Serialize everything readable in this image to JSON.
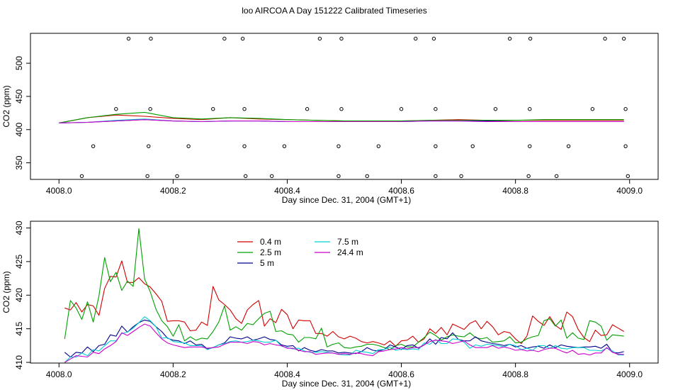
{
  "title": "loo AIRCOA A  Day 151222  Calibrated Timeseries",
  "chart_data": [
    {
      "type": "line",
      "title": "",
      "xlabel": "Day since Dec. 31, 2004 (GMT+1)",
      "ylabel": "CO2 (ppm)",
      "xlim": [
        4007.95,
        4009.05
      ],
      "ylim": [
        325,
        545
      ],
      "xticks": [
        4008.0,
        4008.2,
        4008.4,
        4008.6,
        4008.8,
        4009.0
      ],
      "xtick_labels": [
        "4008.0",
        "4008.2",
        "4008.4",
        "4008.6",
        "4008.8",
        "4009.0"
      ],
      "yticks": [
        350,
        400,
        450,
        500
      ],
      "ytick_labels": [
        "350",
        "400",
        "450",
        "500"
      ],
      "grid": false,
      "x": [
        4008.0,
        4008.05,
        4008.1,
        4008.15,
        4008.2,
        4008.25,
        4008.3,
        4008.35,
        4008.4,
        4008.45,
        4008.5,
        4008.55,
        4008.6,
        4008.65,
        4008.7,
        4008.75,
        4008.8,
        4008.85,
        4008.9,
        4008.95,
        4008.99
      ],
      "series": [
        {
          "color": "#d00000",
          "values": [
            410,
            418,
            422,
            420,
            417,
            415,
            418,
            416,
            415,
            414,
            413,
            413,
            413,
            414,
            415,
            414,
            414,
            414,
            414,
            414,
            414
          ]
        },
        {
          "color": "#00a000",
          "values": [
            410,
            418,
            423,
            426,
            418,
            416,
            418,
            417,
            415,
            414,
            413,
            413,
            413,
            414,
            414,
            414,
            414,
            415,
            415,
            415,
            415
          ]
        },
        {
          "color": "#00008b",
          "values": [
            410,
            411,
            413,
            415,
            413,
            412,
            413,
            413,
            412,
            412,
            412,
            412,
            412,
            413,
            413,
            413,
            412,
            412,
            412,
            412,
            412
          ]
        },
        {
          "color": "#00d0d0",
          "values": [
            410,
            411,
            414,
            416,
            413,
            412,
            413,
            413,
            412,
            412,
            412,
            412,
            412,
            413,
            413,
            412,
            412,
            412,
            412,
            412,
            412
          ]
        },
        {
          "color": "#cc00cc",
          "values": [
            410,
            411,
            413,
            415,
            413,
            412,
            413,
            413,
            412,
            412,
            412,
            412,
            412,
            413,
            413,
            412,
            412,
            412,
            412,
            412,
            412
          ]
        }
      ],
      "flag_markers": [
        {
          "y": 537,
          "x": [
            4008.122,
            4008.161,
            4008.29,
            4008.322,
            4008.457,
            4008.495,
            4008.625,
            4008.657,
            4008.79,
            4008.826,
            4008.957,
            4008.99
          ]
        },
        {
          "y": 431,
          "x": [
            4008.1,
            4008.16,
            4008.27,
            4008.325,
            4008.435,
            4008.495,
            4008.6,
            4008.66,
            4008.765,
            4008.825,
            4008.935,
            4008.993
          ]
        },
        {
          "y": 375,
          "x": [
            4008.06,
            4008.157,
            4008.227,
            4008.325,
            4008.395,
            4008.49,
            4008.56,
            4008.66,
            4008.725,
            4008.825,
            4008.893,
            4008.993
          ]
        },
        {
          "y": 330,
          "x": [
            4008.04,
            4008.155,
            4008.207,
            4008.327,
            4008.373,
            4008.49,
            4008.54,
            4008.66,
            4008.705,
            4008.823,
            4008.872,
            4008.997
          ]
        }
      ]
    },
    {
      "type": "line",
      "title": "",
      "xlabel": "Day since Dec. 31, 2004 (GMT+1)",
      "ylabel": "CO2 (ppm)",
      "xlim": [
        4007.95,
        4009.05
      ],
      "ylim": [
        409.9,
        431
      ],
      "xticks": [
        4008.0,
        4008.2,
        4008.4,
        4008.6,
        4008.8,
        4009.0
      ],
      "xtick_labels": [
        "4008.0",
        "4008.2",
        "4008.4",
        "4008.6",
        "4008.8",
        "4009.0"
      ],
      "yticks": [
        410,
        415,
        420,
        425,
        430
      ],
      "ytick_labels": [
        "410",
        "415",
        "420",
        "425",
        "430"
      ],
      "grid": false,
      "legend_placement": "top-left",
      "x": [
        4008.01,
        4008.02,
        4008.03,
        4008.04,
        4008.05,
        4008.06,
        4008.07,
        4008.08,
        4008.09,
        4008.1,
        4008.11,
        4008.12,
        4008.13,
        4008.14,
        4008.15,
        4008.16,
        4008.17,
        4008.18,
        4008.19,
        4008.2,
        4008.21,
        4008.22,
        4008.23,
        4008.24,
        4008.25,
        4008.26,
        4008.27,
        4008.28,
        4008.29,
        4008.3,
        4008.31,
        4008.32,
        4008.33,
        4008.34,
        4008.35,
        4008.36,
        4008.37,
        4008.38,
        4008.39,
        4008.4,
        4008.41,
        4008.42,
        4008.43,
        4008.44,
        4008.45,
        4008.46,
        4008.47,
        4008.48,
        4008.49,
        4008.5,
        4008.51,
        4008.52,
        4008.53,
        4008.54,
        4008.55,
        4008.56,
        4008.57,
        4008.58,
        4008.59,
        4008.6,
        4008.61,
        4008.62,
        4008.63,
        4008.64,
        4008.65,
        4008.66,
        4008.67,
        4008.68,
        4008.69,
        4008.7,
        4008.71,
        4008.72,
        4008.73,
        4008.74,
        4008.75,
        4008.76,
        4008.77,
        4008.78,
        4008.79,
        4008.8,
        4008.81,
        4008.82,
        4008.83,
        4008.84,
        4008.85,
        4008.86,
        4008.87,
        4008.88,
        4008.89,
        4008.9,
        4008.91,
        4008.92,
        4008.93,
        4008.94,
        4008.95,
        4008.96,
        4008.97,
        4008.98,
        4008.99
      ],
      "series": [
        {
          "name": "0.4 m",
          "color": "#d00000",
          "values": [
            418.1,
            417.8,
            418.9,
            417.5,
            418.6,
            418.4,
            417.0,
            421.0,
            422.8,
            422.7,
            425.1,
            421.9,
            421.9,
            422.6,
            421.7,
            421.2,
            420.2,
            419.1,
            416.1,
            416.2,
            416.2,
            416.0,
            414.7,
            414.8,
            416.0,
            415.5,
            421.3,
            419.3,
            418.6,
            417.8,
            416.5,
            415.8,
            417.8,
            418.6,
            419.2,
            415.4,
            416.5,
            415.9,
            417.9,
            417.1,
            415.0,
            416.3,
            416.2,
            416.2,
            414.3,
            414.3,
            413.9,
            414.6,
            413.8,
            413.5,
            413.9,
            413.6,
            413.1,
            412.9,
            413.1,
            412.9,
            412.6,
            413.2,
            412.4,
            413.2,
            413.3,
            413.9,
            413.0,
            413.5,
            415.0,
            414.3,
            415.2,
            414.1,
            415.7,
            415.3,
            414.9,
            415.8,
            416.2,
            415.0,
            416.1,
            415.3,
            414.1,
            414.6,
            414.4,
            413.5,
            412.8,
            413.9,
            416.9,
            416.1,
            415.5,
            416.8,
            415.5,
            414.9,
            417.5,
            416.8,
            414.9,
            413.7,
            413.1,
            414.8,
            414.0,
            414.1,
            415.6,
            415.1,
            414.6
          ]
        },
        {
          "name": "2.5 m",
          "color": "#00a000",
          "values": [
            413.5,
            419.2,
            418.1,
            416.4,
            419.0,
            416.0,
            419.9,
            425.6,
            422.0,
            423.4,
            420.7,
            422.1,
            421.3,
            429.9,
            422.4,
            420.5,
            417.9,
            416.2,
            415.3,
            413.9,
            415.6,
            413.2,
            413.8,
            413.3,
            413.6,
            413.5,
            414.6,
            416.0,
            418.4,
            414.8,
            415.3,
            414.8,
            415.8,
            415.6,
            416.5,
            417.3,
            417.6,
            414.6,
            414.7,
            414.2,
            414.1,
            413.0,
            413.7,
            413.7,
            413.5,
            415.1,
            412.3,
            412.7,
            412.9,
            412.2,
            412.1,
            412.3,
            412.4,
            412.7,
            412.7,
            412.5,
            412.2,
            411.9,
            412.5,
            412.7,
            412.3,
            412.3,
            413.0,
            413.7,
            414.5,
            414.0,
            413.3,
            413.8,
            414.1,
            413.9,
            413.8,
            414.4,
            413.7,
            413.5,
            413.7,
            413.0,
            413.1,
            413.2,
            413.8,
            412.9,
            413.0,
            413.5,
            413.8,
            414.0,
            416.2,
            416.5,
            415.4,
            416.3,
            413.6,
            414.4,
            413.6,
            413.4,
            416.2,
            416.0,
            415.4,
            413.3,
            414.1,
            414.0,
            413.9
          ]
        },
        {
          "name": "5 m",
          "color": "#00008b",
          "values": [
            411.5,
            410.8,
            411.5,
            411.4,
            412.3,
            411.6,
            412.5,
            412.7,
            414.1,
            413.9,
            415.4,
            414.5,
            415.3,
            415.9,
            416.3,
            416.1,
            415.3,
            414.6,
            413.6,
            413.3,
            413.2,
            412.8,
            413.2,
            412.6,
            412.7,
            412.0,
            412.2,
            412.6,
            412.9,
            413.8,
            413.6,
            413.5,
            413.8,
            413.3,
            413.5,
            413.8,
            413.4,
            413.3,
            412.6,
            412.4,
            412.5,
            411.7,
            412.2,
            411.8,
            411.6,
            411.9,
            411.7,
            411.7,
            411.4,
            411.5,
            411.4,
            411.3,
            411.6,
            412.2,
            411.8,
            411.7,
            411.9,
            412.6,
            412.3,
            411.9,
            412.5,
            412.6,
            412.1,
            412.6,
            413.5,
            412.7,
            413.7,
            413.5,
            414.4,
            413.4,
            413.2,
            413.2,
            413.8,
            413.2,
            413.0,
            412.8,
            412.7,
            412.5,
            412.7,
            412.3,
            412.5,
            412.1,
            412.3,
            412.4,
            412.1,
            412.6,
            412.2,
            412.6,
            412.4,
            412.3,
            412.2,
            412.3,
            412.3,
            412.4,
            412.1,
            412.7,
            411.5,
            411.4,
            411.6
          ]
        },
        {
          "name": "7.5 m",
          "color": "#00d0d0",
          "values": [
            410.0,
            410.8,
            410.8,
            411.4,
            411.0,
            411.9,
            411.7,
            412.5,
            413.2,
            413.2,
            414.3,
            414.5,
            415.1,
            415.9,
            416.8,
            416.2,
            415.3,
            413.6,
            413.7,
            413.1,
            413.0,
            412.9,
            412.5,
            412.5,
            412.5,
            411.9,
            412.2,
            412.6,
            412.8,
            413.1,
            413.2,
            413.0,
            413.1,
            413.3,
            413.2,
            413.0,
            413.0,
            413.3,
            412.4,
            412.2,
            412.0,
            412.1,
            411.7,
            411.5,
            411.5,
            411.6,
            411.5,
            411.4,
            411.2,
            411.1,
            411.1,
            411.8,
            411.6,
            411.5,
            411.3,
            411.9,
            411.9,
            412.3,
            411.8,
            412.0,
            411.9,
            412.0,
            411.9,
            412.9,
            412.7,
            413.4,
            412.8,
            412.8,
            413.5,
            413.4,
            413.0,
            412.1,
            412.6,
            412.4,
            412.7,
            412.6,
            412.5,
            412.3,
            412.7,
            412.5,
            411.9,
            412.1,
            411.8,
            412.5,
            412.5,
            412.1,
            412.5,
            412.1,
            412.0,
            412.2,
            412.2,
            412.2,
            411.8,
            411.8,
            411.7,
            412.1,
            411.7,
            411.1,
            411.1
          ]
        },
        {
          "name": "24.4 m",
          "color": "#cc00cc",
          "values": [
            410.0,
            410.5,
            411.0,
            410.9,
            410.8,
            411.5,
            411.3,
            412.0,
            412.5,
            413.1,
            414.4,
            414.0,
            414.6,
            415.2,
            415.7,
            415.4,
            414.4,
            413.5,
            412.9,
            412.6,
            412.4,
            412.2,
            412.3,
            412.3,
            412.3,
            412.1,
            412.2,
            412.3,
            412.7,
            413.0,
            413.0,
            413.0,
            412.8,
            413.1,
            413.0,
            412.6,
            412.8,
            412.6,
            412.5,
            412.1,
            412.1,
            411.8,
            411.6,
            411.6,
            411.2,
            411.3,
            411.4,
            411.4,
            411.2,
            411.3,
            411.2,
            411.4,
            411.3,
            411.1,
            411.0,
            411.6,
            411.7,
            411.9,
            412.0,
            412.2,
            412.0,
            412.2,
            412.2,
            412.6,
            413.1,
            413.3,
            413.2,
            413.1,
            412.8,
            413.0,
            413.2,
            412.6,
            412.2,
            412.2,
            412.2,
            412.5,
            412.1,
            412.3,
            412.1,
            411.8,
            411.9,
            411.7,
            411.8,
            411.6,
            411.9,
            412.1,
            412.1,
            411.7,
            411.4,
            411.8,
            411.2,
            411.3,
            411.1,
            411.4,
            411.4,
            412.2,
            411.5,
            411.2,
            411.2
          ]
        }
      ]
    }
  ]
}
